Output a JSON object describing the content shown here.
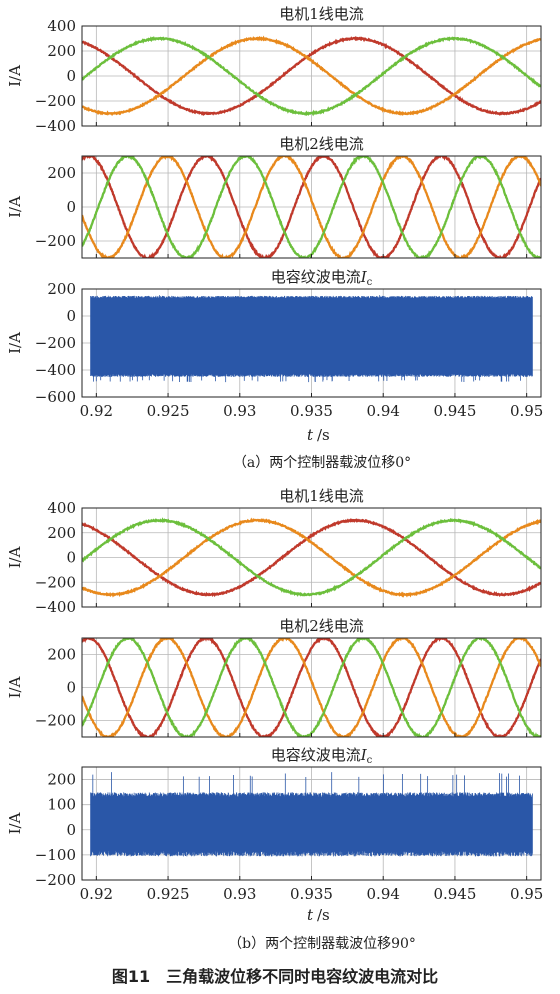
{
  "figure_title": "图11　三角载波位移不同时电容纹波电流对比",
  "groups": [
    {
      "caption": "（a）两个控制器载波位移0°",
      "xlabel_t": "t",
      "xlabel_unit": "/s"
    },
    {
      "caption": "（b）两个控制器载波位移90°",
      "xlabel_t": "t",
      "xlabel_unit": "/s"
    }
  ],
  "colors": {
    "phase_a": "#c0392b",
    "phase_b": "#e8891c",
    "phase_c": "#6cbf3c",
    "ripple": "#2a57a8"
  },
  "chart_data": [
    {
      "type": "line",
      "title": "电机1线电流",
      "ylabel": "I/A",
      "xlim": [
        0.919,
        0.951
      ],
      "ylim": [
        -400,
        400
      ],
      "x_ticks": [
        0.92,
        0.925,
        0.93,
        0.935,
        0.94,
        0.945,
        0.95
      ],
      "y_ticks": [
        400,
        200,
        0,
        -200,
        -400
      ],
      "series": [
        {
          "color": "#c0392b",
          "amplitude": 300,
          "period_s": 0.0205,
          "phase_deg": 115
        },
        {
          "color": "#e8891c",
          "amplitude": 300,
          "period_s": 0.0205,
          "phase_deg": 235
        },
        {
          "color": "#6cbf3c",
          "amplitude": 300,
          "period_s": 0.0205,
          "phase_deg": 355
        }
      ]
    },
    {
      "type": "line",
      "title": "电机2线电流",
      "ylabel": "I/A",
      "xlim": [
        0.919,
        0.951
      ],
      "ylim": [
        -300,
        300
      ],
      "x_ticks": [
        0.92,
        0.925,
        0.93,
        0.935,
        0.94,
        0.945,
        0.95
      ],
      "y_ticks": [
        200,
        0,
        -200
      ],
      "series": [
        {
          "color": "#c0392b",
          "amplitude": 300,
          "period_s": 0.0082,
          "phase_deg": 70
        },
        {
          "color": "#e8891c",
          "amplitude": 300,
          "period_s": 0.0082,
          "phase_deg": 190
        },
        {
          "color": "#6cbf3c",
          "amplitude": 300,
          "period_s": 0.0082,
          "phase_deg": 310
        }
      ]
    },
    {
      "type": "area",
      "title": "电容纹波电流",
      "title_symbol": "I",
      "title_sub": "c",
      "ylabel": "I/A",
      "xlim": [
        0.919,
        0.951
      ],
      "ylim": [
        -600,
        200
      ],
      "x_ticks": [
        0.92,
        0.925,
        0.93,
        0.935,
        0.94,
        0.945,
        0.95
      ],
      "y_ticks": [
        200,
        0,
        -200,
        -400,
        -600
      ],
      "ripple_band": {
        "upper": 140,
        "lower": -440,
        "spike_upper": 155,
        "spike_lower": -490
      }
    },
    {
      "type": "line",
      "title": "电机1线电流",
      "ylabel": "I/A",
      "xlim": [
        0.919,
        0.951
      ],
      "ylim": [
        -400,
        400
      ],
      "x_ticks": [
        0.92,
        0.925,
        0.93,
        0.935,
        0.94,
        0.945,
        0.95
      ],
      "y_ticks": [
        400,
        200,
        0,
        -200,
        -400
      ],
      "series": [
        {
          "color": "#c0392b",
          "amplitude": 300,
          "period_s": 0.0205,
          "phase_deg": 115
        },
        {
          "color": "#e8891c",
          "amplitude": 300,
          "period_s": 0.0205,
          "phase_deg": 235
        },
        {
          "color": "#6cbf3c",
          "amplitude": 300,
          "period_s": 0.0205,
          "phase_deg": 355
        }
      ]
    },
    {
      "type": "line",
      "title": "电机2线电流",
      "ylabel": "I/A",
      "xlim": [
        0.919,
        0.951
      ],
      "ylim": [
        -300,
        300
      ],
      "x_ticks": [
        0.92,
        0.925,
        0.93,
        0.935,
        0.94,
        0.945,
        0.95
      ],
      "y_ticks": [
        200,
        0,
        -200
      ],
      "series": [
        {
          "color": "#c0392b",
          "amplitude": 300,
          "period_s": 0.0082,
          "phase_deg": 70
        },
        {
          "color": "#e8891c",
          "amplitude": 300,
          "period_s": 0.0082,
          "phase_deg": 190
        },
        {
          "color": "#6cbf3c",
          "amplitude": 300,
          "period_s": 0.0082,
          "phase_deg": 310
        }
      ]
    },
    {
      "type": "area",
      "title": "电容纹波电流",
      "title_symbol": "I",
      "title_sub": "c",
      "ylabel": "I/A",
      "xlim": [
        0.919,
        0.951
      ],
      "ylim": [
        -200,
        250
      ],
      "x_ticks": [
        0.92,
        0.925,
        0.93,
        0.935,
        0.94,
        0.945,
        0.95
      ],
      "y_ticks": [
        200,
        100,
        0,
        -100,
        -200
      ],
      "ripple_band": {
        "upper": 140,
        "lower": -95,
        "spike_upper": 230,
        "spike_lower": -105
      }
    }
  ]
}
